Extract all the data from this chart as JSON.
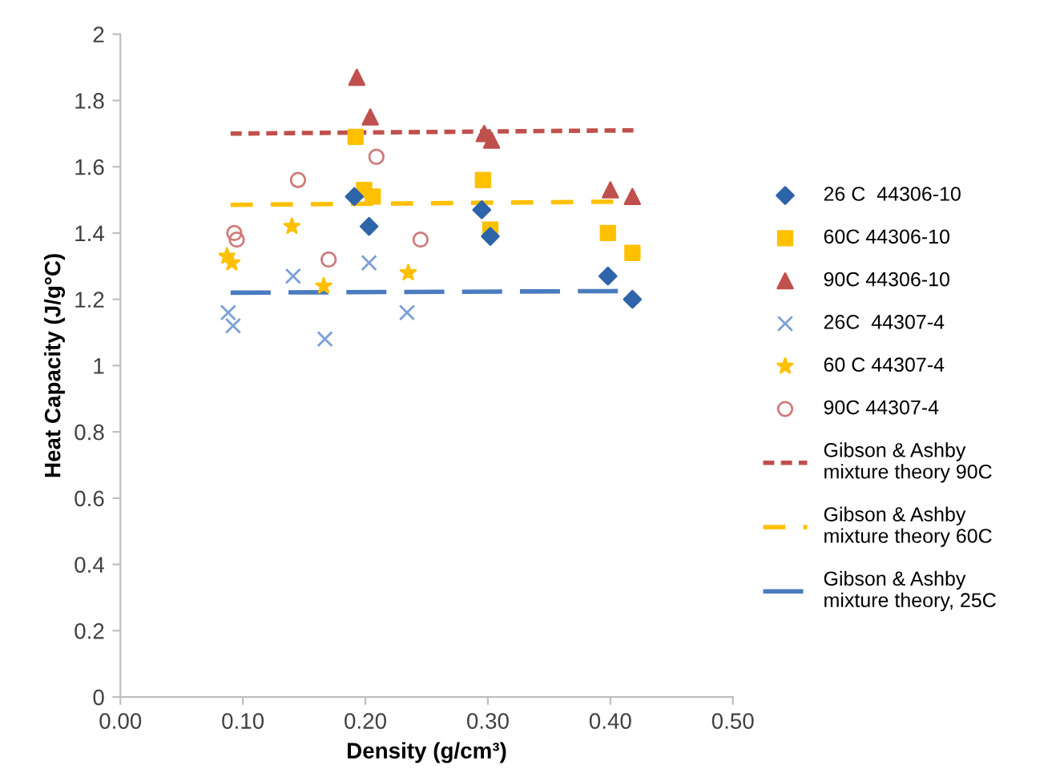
{
  "chart_data": {
    "type": "scatter",
    "xlabel": "Density (g/cm³)",
    "ylabel": "Heat Capacity (J/g°C)",
    "xlim": [
      0,
      0.5
    ],
    "xticks": [
      {
        "value": 0,
        "label": "0.00"
      },
      {
        "value": 0.1,
        "label": "0.10"
      },
      {
        "value": 0.2,
        "label": "0.20"
      },
      {
        "value": 0.3,
        "label": "0.30"
      },
      {
        "value": 0.4,
        "label": "0.40"
      },
      {
        "value": 0.5,
        "label": "0.50"
      }
    ],
    "ylim": [
      0,
      2
    ],
    "yticks": [
      0,
      0.2,
      0.4,
      0.6,
      0.8,
      1,
      1.2,
      1.4,
      1.6,
      1.8,
      2
    ],
    "grid": false,
    "legend": "right",
    "series": [
      {
        "name": "26 C  44306-10",
        "color": "#2e64a8",
        "marker": "diamond",
        "x": [
          0.191,
          0.203,
          0.295,
          0.302,
          0.398,
          0.418
        ],
        "values": [
          1.51,
          1.42,
          1.47,
          1.39,
          1.27,
          1.2
        ]
      },
      {
        "name": "60C 44306-10",
        "color": "#ffc000",
        "marker": "square",
        "x": [
          0.192,
          0.199,
          0.206,
          0.296,
          0.302,
          0.398,
          0.418
        ],
        "values": [
          1.69,
          1.53,
          1.51,
          1.56,
          1.41,
          1.4,
          1.34
        ]
      },
      {
        "name": "90C 44306-10",
        "color": "#c0504d",
        "marker": "triangle",
        "x": [
          0.193,
          0.204,
          0.297,
          0.303,
          0.4,
          0.418
        ],
        "values": [
          1.87,
          1.75,
          1.7,
          1.68,
          1.53,
          1.51
        ]
      },
      {
        "name": "26C  44307-4",
        "color": "#7ba0d6",
        "marker": "cross",
        "x": [
          0.088,
          0.092,
          0.141,
          0.167,
          0.203,
          0.234
        ],
        "values": [
          1.16,
          1.12,
          1.27,
          1.08,
          1.31,
          1.16
        ]
      },
      {
        "name": "60 C 44307-4",
        "color": "#ffc000",
        "marker": "star",
        "x": [
          0.087,
          0.091,
          0.14,
          0.166,
          0.235
        ],
        "values": [
          1.33,
          1.31,
          1.42,
          1.24,
          1.28
        ]
      },
      {
        "name": "90C 44307-4",
        "color": "#d07a78",
        "marker": "circle",
        "x": [
          0.093,
          0.095,
          0.145,
          0.17,
          0.209,
          0.245
        ],
        "values": [
          1.4,
          1.38,
          1.56,
          1.32,
          1.63,
          1.38
        ]
      },
      {
        "name": "Gibson & Ashby mixture theory 90C",
        "type": "line",
        "line_style": "dotted",
        "marker": "none",
        "color": "#c0504d",
        "x": [
          0.09,
          0.42
        ],
        "values": [
          1.7,
          1.71
        ]
      },
      {
        "name": "Gibson & Ashby mixture theory 60C",
        "type": "line",
        "line_style": "dashed",
        "marker": "none",
        "color": "#ffc000",
        "x": [
          0.09,
          0.42
        ],
        "values": [
          1.485,
          1.495
        ]
      },
      {
        "name": "Gibson & Ashby mixture theory, 25C",
        "type": "line",
        "line_style": "longdash",
        "marker": "none",
        "color": "#4a7bbf",
        "x": [
          0.09,
          0.42
        ],
        "values": [
          1.22,
          1.225
        ]
      }
    ]
  }
}
